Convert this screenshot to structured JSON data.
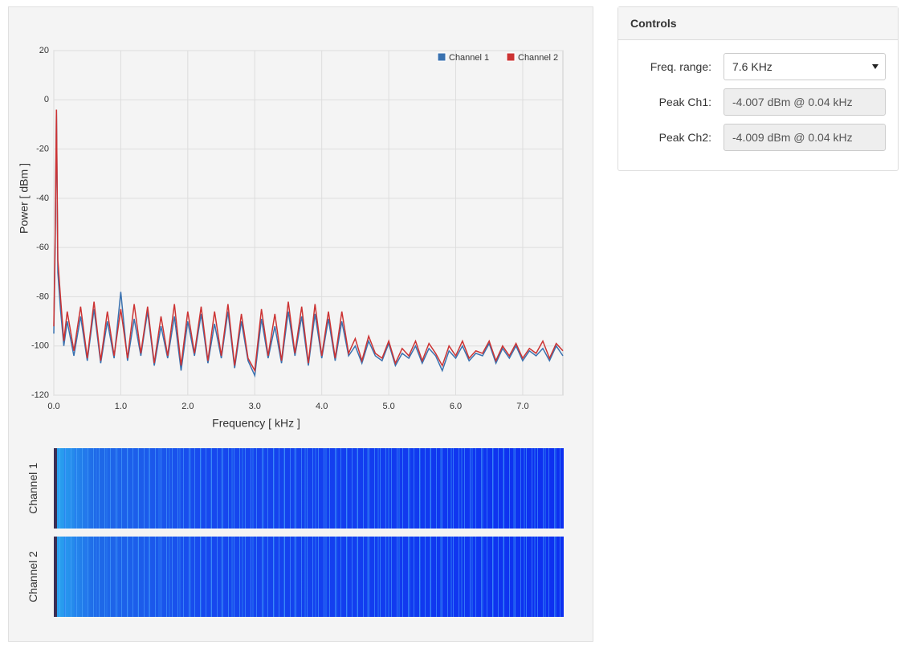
{
  "chart_data": {
    "type": "line",
    "xlabel": "Frequency [ kHz ]",
    "ylabel": "Power [ dBm ]",
    "x": [
      0,
      0.02,
      0.04,
      0.06,
      0.1,
      0.15,
      0.2,
      0.3,
      0.4,
      0.5,
      0.6,
      0.7,
      0.8,
      0.9,
      1.0,
      1.1,
      1.2,
      1.3,
      1.4,
      1.5,
      1.6,
      1.7,
      1.8,
      1.9,
      2.0,
      2.1,
      2.2,
      2.3,
      2.4,
      2.5,
      2.6,
      2.7,
      2.8,
      2.9,
      3.0,
      3.1,
      3.2,
      3.3,
      3.4,
      3.5,
      3.6,
      3.7,
      3.8,
      3.9,
      4.0,
      4.1,
      4.2,
      4.3,
      4.4,
      4.5,
      4.6,
      4.7,
      4.8,
      4.9,
      5.0,
      5.1,
      5.2,
      5.3,
      5.4,
      5.5,
      5.6,
      5.7,
      5.8,
      5.9,
      6.0,
      6.1,
      6.2,
      6.3,
      6.4,
      6.5,
      6.6,
      6.7,
      6.8,
      6.9,
      7.0,
      7.1,
      7.2,
      7.3,
      7.4,
      7.5,
      7.6
    ],
    "series": [
      {
        "name": "Channel 1",
        "color": "#3a72b0",
        "values": [
          -95,
          -60,
          -4,
          -70,
          -85,
          -100,
          -90,
          -104,
          -88,
          -106,
          -85,
          -107,
          -90,
          -105,
          -78,
          -106,
          -89,
          -104,
          -86,
          -108,
          -92,
          -105,
          -88,
          -110,
          -90,
          -104,
          -87,
          -107,
          -91,
          -105,
          -86,
          -109,
          -90,
          -106,
          -112,
          -89,
          -105,
          -92,
          -107,
          -86,
          -104,
          -88,
          -108,
          -87,
          -105,
          -89,
          -106,
          -90,
          -104,
          -100,
          -107,
          -98,
          -104,
          -106,
          -99,
          -108,
          -103,
          -105,
          -100,
          -107,
          -101,
          -104,
          -110,
          -102,
          -105,
          -100,
          -106,
          -103,
          -104,
          -99,
          -107,
          -101,
          -105,
          -100,
          -106,
          -102,
          -104,
          -101,
          -106,
          -100,
          -104
        ]
      },
      {
        "name": "Channel 2",
        "color": "#cc3333",
        "values": [
          -92,
          -55,
          -4,
          -65,
          -80,
          -98,
          -86,
          -102,
          -84,
          -105,
          -82,
          -106,
          -86,
          -104,
          -85,
          -105,
          -83,
          -103,
          -84,
          -107,
          -88,
          -104,
          -83,
          -108,
          -86,
          -103,
          -84,
          -106,
          -86,
          -104,
          -83,
          -108,
          -87,
          -105,
          -110,
          -85,
          -104,
          -87,
          -106,
          -82,
          -103,
          -84,
          -107,
          -83,
          -104,
          -86,
          -105,
          -86,
          -103,
          -97,
          -106,
          -96,
          -103,
          -105,
          -98,
          -107,
          -101,
          -104,
          -98,
          -106,
          -99,
          -103,
          -108,
          -100,
          -104,
          -98,
          -105,
          -102,
          -103,
          -98,
          -106,
          -100,
          -104,
          -99,
          -105,
          -101,
          -103,
          -98,
          -105,
          -99,
          -102
        ]
      }
    ],
    "xlim": [
      0,
      7.6
    ],
    "ylim": [
      -120,
      20
    ],
    "xticks": [
      {
        "value": 0,
        "label": "0.0"
      },
      {
        "value": 1,
        "label": "1.0"
      },
      {
        "value": 2,
        "label": "2.0"
      },
      {
        "value": 3,
        "label": "3.0"
      },
      {
        "value": 4,
        "label": "4.0"
      },
      {
        "value": 5,
        "label": "5.0"
      },
      {
        "value": 6,
        "label": "6.0"
      },
      {
        "value": 7,
        "label": "7.0"
      }
    ],
    "yticks": [
      20,
      0,
      -20,
      -40,
      -60,
      -80,
      -100,
      -120
    ],
    "grid": true,
    "legend": "upper right"
  },
  "waterfall": {
    "labels": [
      "Channel 1",
      "Channel 2"
    ]
  },
  "controls": {
    "title": "Controls",
    "fields": [
      {
        "label": "Freq. range:",
        "value": "7.6 KHz"
      },
      {
        "label": "Peak Ch1:",
        "value": "-4.007 dBm @ 0.04 kHz"
      },
      {
        "label": "Peak Ch2:",
        "value": "-4.009 dBm @ 0.04 kHz"
      }
    ]
  }
}
